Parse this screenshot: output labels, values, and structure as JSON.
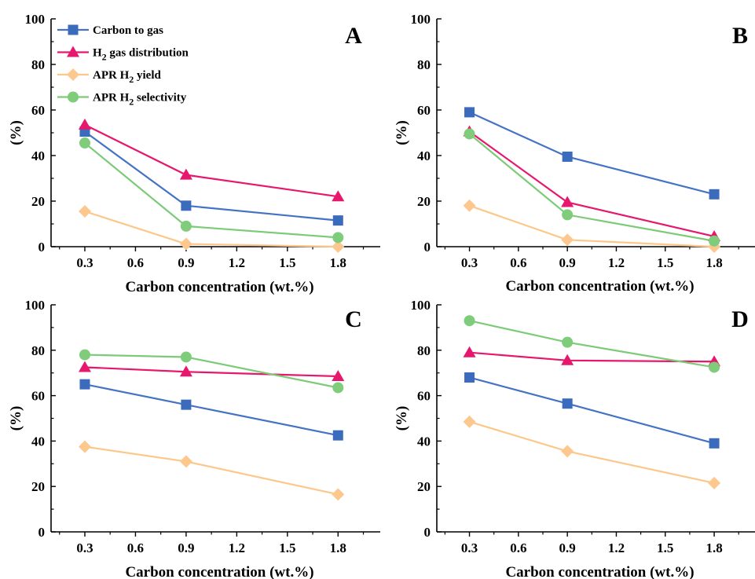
{
  "chart_data": [
    {
      "type": "line",
      "panel_label": "A",
      "x": [
        0.3,
        0.9,
        1.8
      ],
      "xticks": [
        "0.3",
        "0.6",
        "0.9",
        "1.2",
        "1.5",
        "1.8"
      ],
      "yticks": [
        "0",
        "20",
        "40",
        "60",
        "80",
        "100"
      ],
      "xlabel": "Carbon concentration (wt.%)",
      "ylabel": "(%)",
      "xlim": [
        0.1,
        2.05
      ],
      "ylim": [
        0,
        100
      ],
      "legend": "top-left",
      "series": [
        {
          "name": "Carbon to gas",
          "values": [
            50.5,
            18,
            11.5
          ]
        },
        {
          "name": "H2 gas distribution",
          "values": [
            53.5,
            31.5,
            22
          ]
        },
        {
          "name": "APR H2 yield",
          "values": [
            15.5,
            1.2,
            0
          ]
        },
        {
          "name": "APR H2 selectivity",
          "values": [
            45.5,
            9,
            4
          ]
        }
      ]
    },
    {
      "type": "line",
      "panel_label": "B",
      "x": [
        0.3,
        0.9,
        1.8
      ],
      "xticks": [
        "0.3",
        "0.6",
        "0.9",
        "1.2",
        "1.5",
        "1.8"
      ],
      "yticks": [
        "0",
        "20",
        "40",
        "60",
        "80",
        "100"
      ],
      "xlabel": "Carbon concentration (wt.%)",
      "ylabel": "(%)",
      "xlim": [
        0.1,
        2.05
      ],
      "ylim": [
        0,
        100
      ],
      "series": [
        {
          "name": "Carbon to gas",
          "values": [
            59,
            39.5,
            23
          ]
        },
        {
          "name": "H2 gas distribution",
          "values": [
            50.5,
            19.5,
            4.5
          ]
        },
        {
          "name": "APR H2 yield",
          "values": [
            18,
            3,
            0
          ]
        },
        {
          "name": "APR H2 selectivity",
          "values": [
            49.5,
            14,
            2.5
          ]
        }
      ]
    },
    {
      "type": "line",
      "panel_label": "C",
      "x": [
        0.3,
        0.9,
        1.8
      ],
      "xticks": [
        "0.3",
        "0.6",
        "0.9",
        "1.2",
        "1.5",
        "1.8"
      ],
      "yticks": [
        "0",
        "20",
        "40",
        "60",
        "80",
        "100"
      ],
      "xlabel": "Carbon concentration (wt.%)",
      "ylabel": "(%)",
      "xlim": [
        0.1,
        2.05
      ],
      "ylim": [
        0,
        100
      ],
      "series": [
        {
          "name": "Carbon to gas",
          "values": [
            65,
            56,
            42.5
          ]
        },
        {
          "name": "H2 gas distribution",
          "values": [
            72.5,
            70.5,
            68.5
          ]
        },
        {
          "name": "APR H2 yield",
          "values": [
            37.5,
            31,
            16.5
          ]
        },
        {
          "name": "APR H2 selectivity",
          "values": [
            78,
            77,
            63.5
          ]
        }
      ]
    },
    {
      "type": "line",
      "panel_label": "D",
      "x": [
        0.3,
        0.9,
        1.8
      ],
      "xticks": [
        "0.3",
        "0.6",
        "0.9",
        "1.2",
        "1.5",
        "1.8"
      ],
      "yticks": [
        "0",
        "20",
        "40",
        "60",
        "80",
        "100"
      ],
      "xlabel": "Carbon concentration (wt.%)",
      "ylabel": "(%)",
      "xlim": [
        0.1,
        2.05
      ],
      "ylim": [
        0,
        100
      ],
      "series": [
        {
          "name": "Carbon to gas",
          "values": [
            68,
            56.5,
            39
          ]
        },
        {
          "name": "H2 gas distribution",
          "values": [
            79,
            75.5,
            75
          ]
        },
        {
          "name": "APR H2 yield",
          "values": [
            48.5,
            35.5,
            21.5
          ]
        },
        {
          "name": "APR H2 selectivity",
          "values": [
            93,
            83.5,
            72.5
          ]
        }
      ]
    }
  ],
  "legend": {
    "items": [
      {
        "pre": "Carbon to gas",
        "sub": "",
        "post": ""
      },
      {
        "pre": "H",
        "sub": "2",
        "post": " gas distribution"
      },
      {
        "pre": "APR H",
        "sub": "2",
        "post": " yield"
      },
      {
        "pre": "APR H",
        "sub": "2",
        "post": " selectivity"
      }
    ]
  },
  "series_styles": [
    {
      "color": "#4472C4",
      "fill": "#3B6BBD",
      "marker": "square"
    },
    {
      "color": "#E6176C",
      "fill": "#E6176C",
      "marker": "triangle"
    },
    {
      "color": "#FCC88A",
      "fill": "#FDC88E",
      "marker": "diamond"
    },
    {
      "color": "#7BCB77",
      "fill": "#7FCC7A",
      "marker": "circle"
    }
  ]
}
